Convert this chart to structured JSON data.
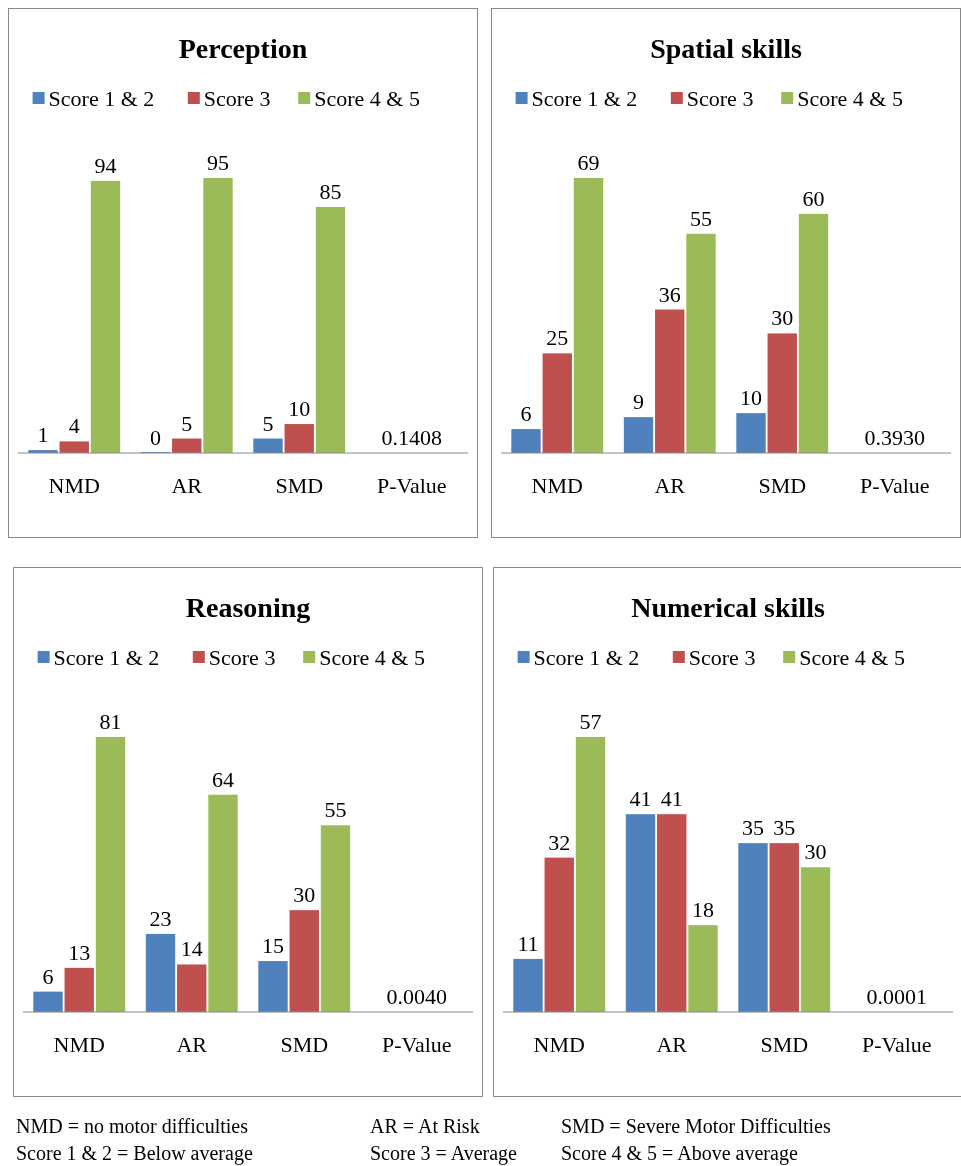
{
  "chart_data": [
    {
      "type": "bar",
      "title": "Perception",
      "categories": [
        "NMD",
        "AR",
        "SMD",
        "P-Value"
      ],
      "series": [
        {
          "name": "Score 1 & 2",
          "color": "#4f81bd",
          "values": [
            1,
            0,
            5,
            null
          ]
        },
        {
          "name": "Score 3",
          "color": "#c0504d",
          "values": [
            4,
            5,
            10,
            null
          ]
        },
        {
          "name": "Score 4 & 5",
          "color": "#9bbb59",
          "values": [
            94,
            95,
            85,
            null
          ]
        }
      ],
      "data_labels": true,
      "legend": "top",
      "annotations": [
        "0.1408"
      ]
    },
    {
      "type": "bar",
      "title": "Spatial skills",
      "categories": [
        "NMD",
        "AR",
        "SMD",
        "P-Value"
      ],
      "series": [
        {
          "name": "Score 1 & 2",
          "color": "#4f81bd",
          "values": [
            6,
            9,
            10,
            null
          ]
        },
        {
          "name": "Score 3",
          "color": "#c0504d",
          "values": [
            25,
            36,
            30,
            null
          ]
        },
        {
          "name": "Score 4 & 5",
          "color": "#9bbb59",
          "values": [
            69,
            55,
            60,
            null
          ]
        }
      ],
      "data_labels": true,
      "legend": "top",
      "annotations": [
        "0.3930"
      ]
    },
    {
      "type": "bar",
      "title": "Reasoning",
      "categories": [
        "NMD",
        "AR",
        "SMD",
        "P-Value"
      ],
      "series": [
        {
          "name": "Score 1 & 2",
          "color": "#4f81bd",
          "values": [
            6,
            23,
            15,
            null
          ]
        },
        {
          "name": "Score 3",
          "color": "#c0504d",
          "values": [
            13,
            14,
            30,
            null
          ]
        },
        {
          "name": "Score 4 & 5",
          "color": "#9bbb59",
          "values": [
            81,
            64,
            55,
            null
          ]
        }
      ],
      "data_labels": true,
      "legend": "top",
      "annotations": [
        "0.0040"
      ]
    },
    {
      "type": "bar",
      "title": "Numerical skills",
      "categories": [
        "NMD",
        "AR",
        "SMD",
        "P-Value"
      ],
      "series": [
        {
          "name": "Score 1 & 2",
          "color": "#4f81bd",
          "values": [
            11,
            41,
            35,
            null
          ]
        },
        {
          "name": "Score 3",
          "color": "#c0504d",
          "values": [
            32,
            41,
            35,
            null
          ]
        },
        {
          "name": "Score 4 & 5",
          "color": "#9bbb59",
          "values": [
            57,
            18,
            30,
            null
          ]
        }
      ],
      "data_labels": true,
      "legend": "top",
      "annotations": [
        "0.0001",
        "NMD = no motor difficulties",
        "AR = At Risk",
        "SMD = Severe Motor Difficulties",
        "Score 1 & 2 = Below average",
        "Score 3 = Average",
        "Score 4 & 5 = Above average"
      ]
    }
  ]
}
